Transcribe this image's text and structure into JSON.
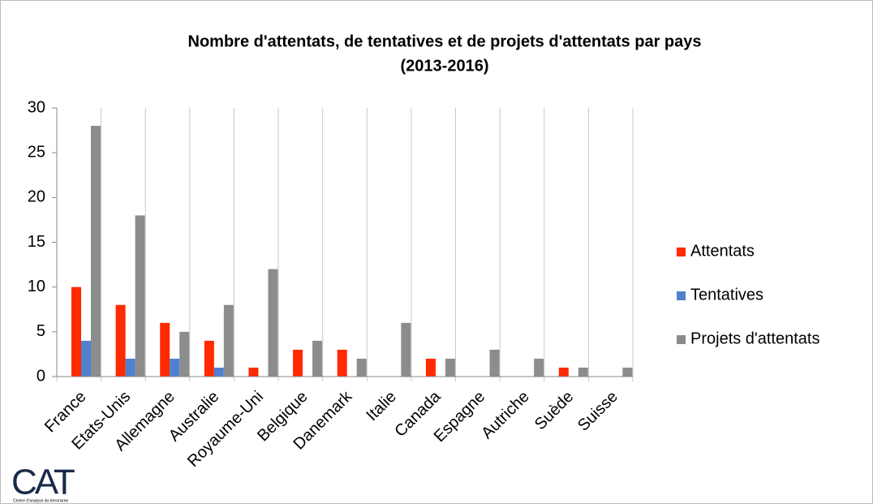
{
  "chart_data": {
    "type": "bar",
    "title": "Nombre d'attentats, de tentatives et de projets d'attentats par pays",
    "subtitle": "(2013-2016)",
    "categories": [
      "France",
      "Etats-Unis",
      "Allemagne",
      "Australie",
      "Royaume-Uni",
      "Belgique",
      "Danemark",
      "Italie",
      "Canada",
      "Espagne",
      "Autriche",
      "Suède",
      "Suisse"
    ],
    "series": [
      {
        "name": "Attentats",
        "color": "#ff2a00",
        "values": [
          10,
          8,
          6,
          4,
          1,
          3,
          3,
          0,
          2,
          0,
          0,
          1,
          0
        ]
      },
      {
        "name": "Tentatives",
        "color": "#4f81d0",
        "values": [
          4,
          2,
          2,
          1,
          0,
          0,
          0,
          0,
          0,
          0,
          0,
          0,
          0
        ]
      },
      {
        "name": "Projets d'attentats",
        "color": "#8c8c8c",
        "values": [
          28,
          18,
          5,
          8,
          12,
          4,
          2,
          6,
          2,
          3,
          2,
          1,
          1
        ]
      }
    ],
    "ylim": [
      0,
      30
    ],
    "yticks": [
      0,
      5,
      10,
      15,
      20,
      25,
      30
    ],
    "grid": true,
    "legend": "right",
    "logo": "CAT",
    "logo_caption": "Centre d'analyse du terrorisme"
  }
}
